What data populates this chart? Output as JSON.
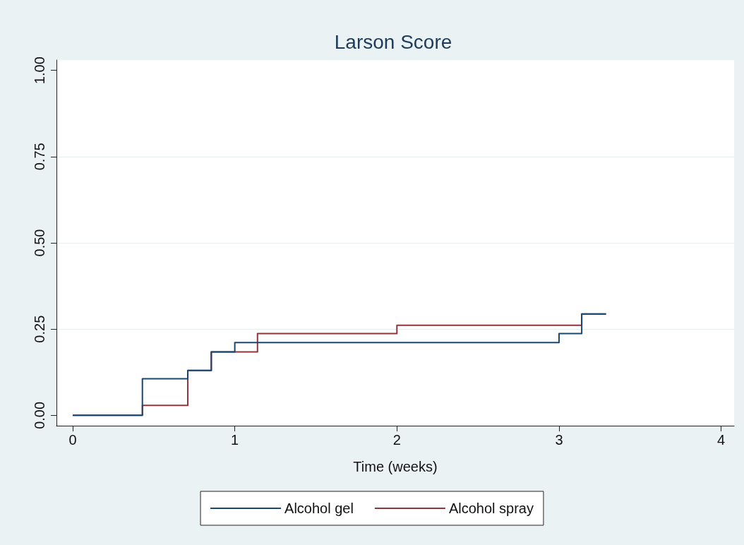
{
  "chart_data": {
    "type": "step",
    "title": "Larson Score",
    "xlabel": "Time (weeks)",
    "xlim": [
      -0.1,
      4.08
    ],
    "xticks": [
      0,
      1,
      2,
      3,
      4
    ],
    "ylim": [
      -0.03,
      1.03
    ],
    "yticks": [
      {
        "value": 0,
        "label": "0.00"
      },
      {
        "value": 0.25,
        "label": "0.25"
      },
      {
        "value": 0.5,
        "label": "0.50"
      },
      {
        "value": 0.75,
        "label": "0.75"
      },
      {
        "value": 1,
        "label": "1.00"
      }
    ],
    "grid": "y",
    "legend": "bottom",
    "series": [
      {
        "name": "Alcohol spray",
        "color": "#90353b",
        "x": [
          0,
          0.43,
          0.71,
          0.855,
          1.14,
          2.0,
          3.14,
          3.29
        ],
        "values": [
          0,
          0.029,
          0.13,
          0.184,
          0.237,
          0.261,
          0.294,
          0.294
        ]
      },
      {
        "name": "Alcohol gel",
        "color": "#1a476f",
        "x": [
          0,
          0.43,
          0.71,
          0.855,
          1.0,
          3.0,
          3.14,
          3.29
        ],
        "values": [
          0,
          0.106,
          0.13,
          0.184,
          0.211,
          0.237,
          0.294,
          0.294
        ]
      }
    ]
  }
}
